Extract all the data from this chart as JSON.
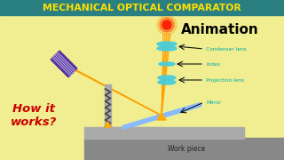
{
  "title": "MECHANICAL OPTICAL COMPARATOR",
  "title_color": "#FFE000",
  "title_bg": "#2A8080",
  "bg_color": "#F0EE90",
  "animation_text": "Animation",
  "how_text": "How it\nworks?",
  "how_color": "#CC0000",
  "label_color": "#00AAAA",
  "label_arrow_color": "#111111",
  "workpiece_text": "Work piece",
  "scale_color": "#5530A0",
  "lens_color": "#44CCDD",
  "mirror_color": "#88BBFF",
  "ray_color": "#FFA000",
  "stand_color": "#AAAAAA",
  "spring_color": "#444444",
  "pivot_color": "#FFAA00",
  "wp_dark": "#888888",
  "wp_light": "#AAAAAA"
}
